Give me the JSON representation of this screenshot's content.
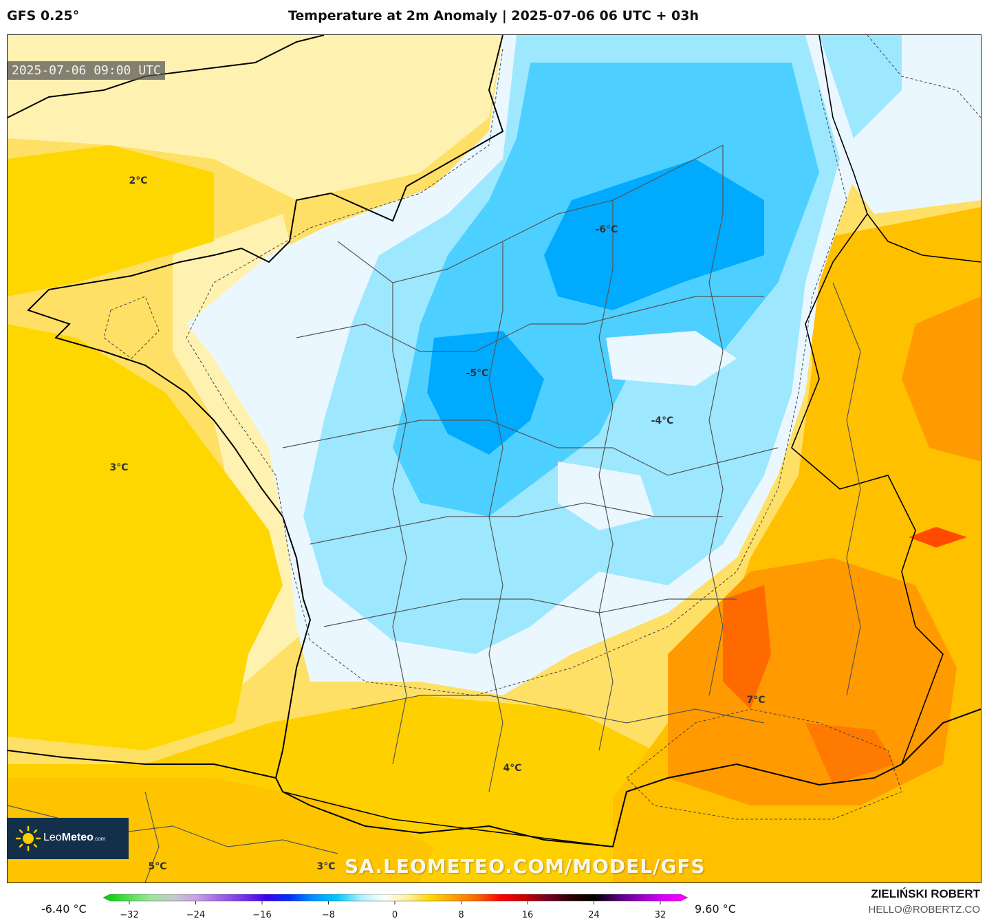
{
  "header": {
    "model": "GFS 0.25°",
    "title": "Temperature at 2m Anomaly | 2025-07-06 06 UTC + 03h"
  },
  "map": {
    "valid_time": "2025-07-06 09:00 UTC",
    "watermark": "SA.LEOMETEO.COM/MODEL/GFS",
    "logo": {
      "name_light": "Leo",
      "name_bold": "Meteo",
      "suffix": ".com"
    },
    "contour_labels": [
      {
        "text": "2°C",
        "value": 2
      },
      {
        "text": "3°C",
        "value": 3
      },
      {
        "text": "-6°C",
        "value": -6
      },
      {
        "text": "-5°C",
        "value": -5
      },
      {
        "text": "-4°C",
        "value": -4
      },
      {
        "text": "7°C",
        "value": 7
      },
      {
        "text": "4°C",
        "value": 4
      },
      {
        "text": "5°C",
        "value": 5
      },
      {
        "text": "3°C",
        "value": 3
      }
    ],
    "colors": {
      "warm_light": "#fff2b0",
      "warm": "#ffd700",
      "warm_mid": "#ffc200",
      "hot": "#ff9a00",
      "hotter": "#ff6a00",
      "cold_light": "#eaf7ff",
      "cold": "#9ee8ff",
      "colder": "#4dd0ff",
      "coldest": "#00aaff"
    }
  },
  "colorbar": {
    "min_label": "-6.40 °C",
    "max_label": "9.60 °C",
    "ticks": [
      "−32",
      "−24",
      "−16",
      "−8",
      "0",
      "8",
      "16",
      "24",
      "32"
    ],
    "tick_values": [
      -32,
      -24,
      -16,
      -8,
      0,
      8,
      16,
      24,
      32
    ],
    "range": [
      -32,
      32
    ],
    "stops": [
      "#00c800",
      "#4be04b",
      "#9ae69a",
      "#c8c8c8",
      "#c8a0e6",
      "#a064e6",
      "#7832e6",
      "#3c00f0",
      "#0032ff",
      "#0096ff",
      "#00c8ff",
      "#aaf0ff",
      "#ffffff",
      "#fff0a0",
      "#ffd700",
      "#ffa000",
      "#ff6400",
      "#ff0000",
      "#c80000",
      "#780028",
      "#280000",
      "#000000",
      "#500078",
      "#9600c8",
      "#dc00ff",
      "#ff00ff"
    ]
  },
  "credits": {
    "name": "ZIELIŃSKI ROBERT",
    "email": "HELLO@ROBERTZ.CO"
  }
}
